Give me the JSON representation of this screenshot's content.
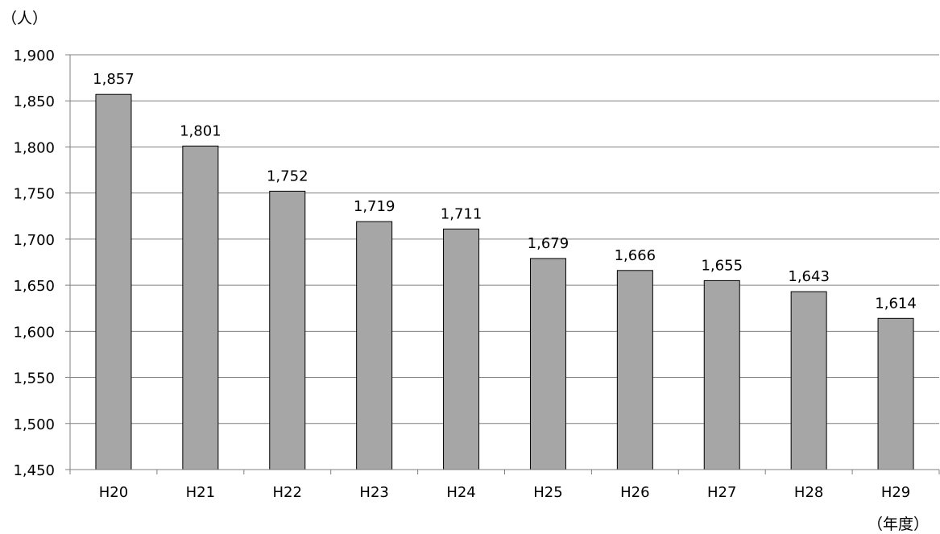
{
  "chart_data": {
    "type": "bar",
    "title": "",
    "xlabel": "（年度）",
    "ylabel": "（人）",
    "categories": [
      "H20",
      "H21",
      "H22",
      "H23",
      "H24",
      "H25",
      "H26",
      "H27",
      "H28",
      "H29"
    ],
    "values": [
      1857,
      1801,
      1752,
      1719,
      1711,
      1679,
      1666,
      1655,
      1643,
      1614
    ],
    "data_labels": [
      "1,857",
      "1,801",
      "1,752",
      "1,719",
      "1,711",
      "1,679",
      "1,666",
      "1,655",
      "1,643",
      "1,614"
    ],
    "ylim": [
      1450,
      1900
    ],
    "y_ticks": [
      "1,450",
      "1,500",
      "1,550",
      "1,600",
      "1,650",
      "1,700",
      "1,750",
      "1,800",
      "1,850",
      "1,900"
    ],
    "y_tick_values": [
      1450,
      1500,
      1550,
      1600,
      1650,
      1700,
      1750,
      1800,
      1850,
      1900
    ],
    "grid": true,
    "legend": "none",
    "bar_color": "#a6a6a6",
    "bar_edge_color": "#000000",
    "grid_color": "#7f7f7f"
  }
}
